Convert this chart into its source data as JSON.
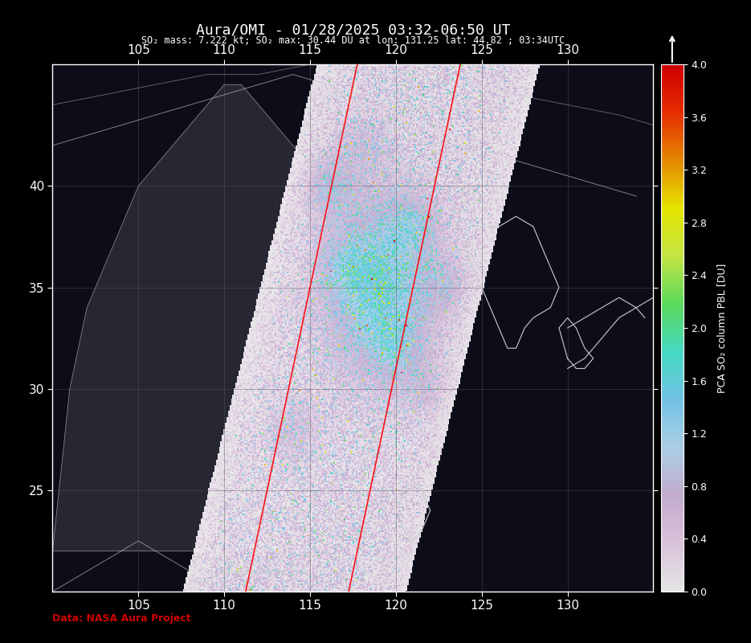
{
  "title": "Aura/OMI - 01/28/2025 03:32-06:50 UT",
  "subtitle": "SO₂ mass: 7.222 kt; SO₂ max: 30.44 DU at lon: 131.25 lat: 44.82 ; 03:34UTC",
  "colorbar_label": "PCA SO₂ column PBL [DU]",
  "colorbar_ticks": [
    0.0,
    0.4,
    0.8,
    1.2,
    1.6,
    2.0,
    2.4,
    2.8,
    3.2,
    3.6,
    4.0
  ],
  "lon_min": 100,
  "lon_max": 135,
  "lat_min": 20,
  "lat_max": 46,
  "lon_ticks": [
    105,
    110,
    115,
    120,
    125,
    130
  ],
  "lat_ticks": [
    25,
    30,
    35,
    40
  ],
  "background_color": "#000000",
  "map_bg_color": "#1a1a2e",
  "land_color": "#2d2d2d",
  "data_source": "Data: NASA Aura Project",
  "data_source_color": "#cc0000",
  "orbit_line_color": "#ff0000",
  "grid_color": "#555555",
  "title_color": "#ffffff",
  "subtitle_color": "#ffffff",
  "tick_label_color": "#ffffff",
  "figsize": [
    9.35,
    8.0
  ],
  "dpi": 100
}
